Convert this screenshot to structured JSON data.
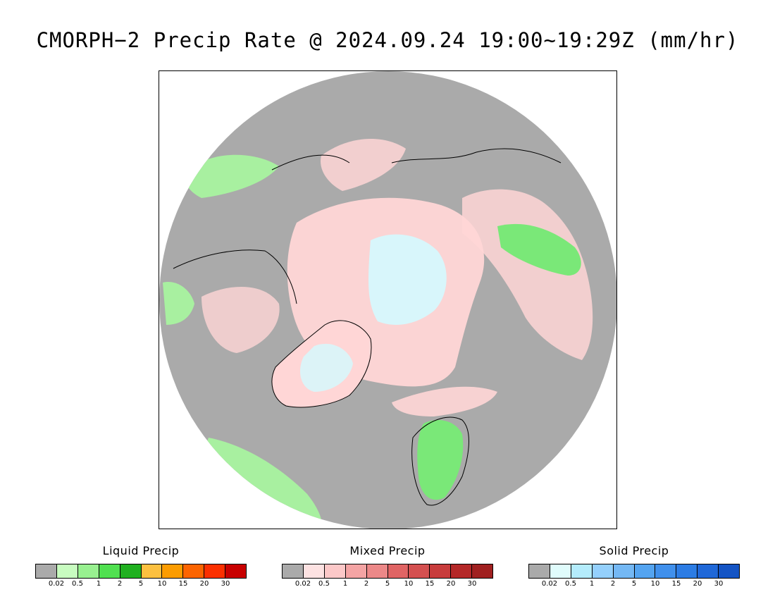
{
  "title": "CMORPH−2 Precip Rate @ 2024.09.24 19:00~19:29Z (mm/hr)",
  "map": {
    "projection": "north polar stereographic",
    "background_color": "#aaaaaa",
    "coast_color": "#000000",
    "features": [
      {
        "name": "mixed-precip-arctic-band",
        "class": "mixed",
        "color": "#ffd6d6"
      },
      {
        "name": "solid-precip-north-pole",
        "class": "solid",
        "color": "#d8f6fb"
      },
      {
        "name": "solid-precip-greenland",
        "class": "solid",
        "color": "#d8f6fb"
      },
      {
        "name": "liquid-precip-north-atlantic",
        "class": "liquid",
        "color": "#a8f0a0"
      },
      {
        "name": "liquid-precip-north-pacific",
        "class": "liquid",
        "color": "#a8f0a0"
      },
      {
        "name": "liquid-precip-scandinavia",
        "class": "liquid",
        "color": "#7ae878"
      },
      {
        "name": "liquid-precip-siberia",
        "class": "liquid",
        "color": "#7ae878"
      }
    ]
  },
  "legends": [
    {
      "title": "Liquid Precip",
      "colors": [
        "#aaaaaa",
        "#c8fcc0",
        "#98f090",
        "#50e050",
        "#20b020",
        "#fcc040",
        "#fc9c00",
        "#fc6400",
        "#fc3000",
        "#c80000"
      ],
      "ticks": [
        "0.02",
        "0.5",
        "1",
        "2",
        "5",
        "10",
        "15",
        "20",
        "30"
      ]
    },
    {
      "title": "Mixed Precip",
      "colors": [
        "#aaaaaa",
        "#fde2e2",
        "#fcc8c8",
        "#f4a4a4",
        "#ec8888",
        "#e06464",
        "#d45050",
        "#c83c3c",
        "#b42828",
        "#a02020"
      ],
      "ticks": [
        "0.02",
        "0.5",
        "1",
        "2",
        "5",
        "10",
        "15",
        "20",
        "30"
      ]
    },
    {
      "title": "Solid Precip",
      "colors": [
        "#aaaaaa",
        "#e0fcfc",
        "#b4ecfc",
        "#94d0fc",
        "#74b8f4",
        "#54a4f0",
        "#4090ec",
        "#2c7ce4",
        "#2068d8",
        "#1454c4"
      ],
      "ticks": [
        "0.02",
        "0.5",
        "1",
        "2",
        "5",
        "10",
        "15",
        "20",
        "30"
      ]
    }
  ]
}
